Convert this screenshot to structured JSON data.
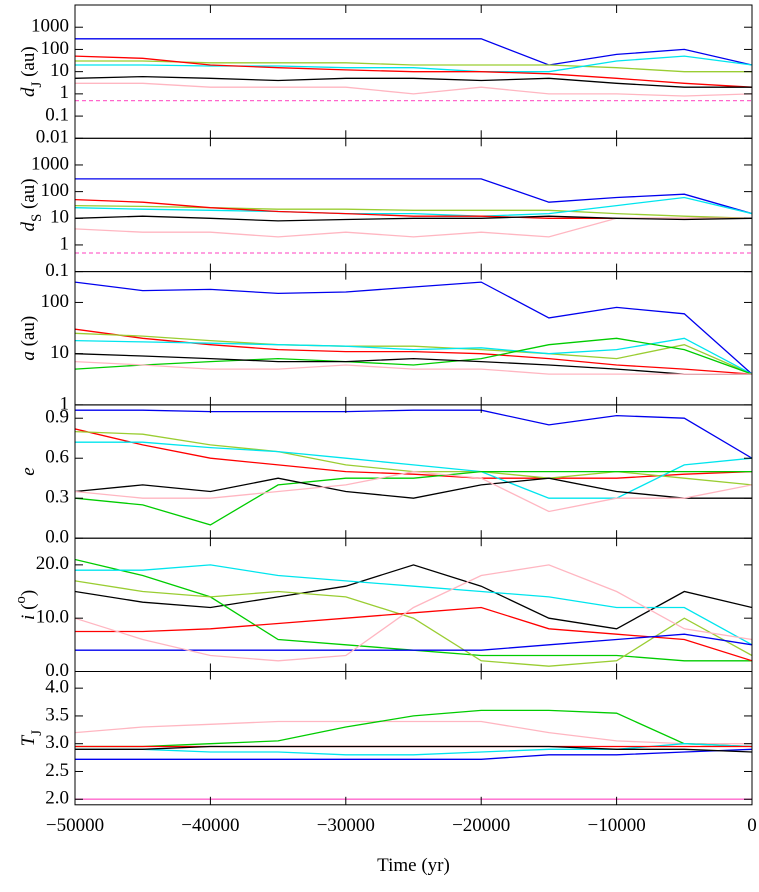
{
  "chart_data": [
    {
      "type": "line",
      "log": true,
      "ylabel": [
        {
          "text": "d",
          "style": "italic"
        },
        {
          "text": "J",
          "style": "sub"
        },
        {
          "text": " (au)",
          "style": "normal"
        }
      ],
      "xlim": [
        -50000,
        0
      ],
      "ylim": [
        0.01,
        10000
      ],
      "yticks": [
        0.01,
        0.1,
        1,
        10,
        100,
        1000
      ],
      "x": [
        -50000,
        -45000,
        -40000,
        -35000,
        -30000,
        -25000,
        -20000,
        -15000,
        -10000,
        -5000,
        0
      ],
      "series": [
        {
          "color": "#ff66cc",
          "dash": true,
          "values": [
            0.5,
            0.5,
            0.5,
            0.5,
            0.5,
            0.5,
            0.5,
            0.5,
            0.5,
            0.5,
            0.5
          ]
        },
        {
          "color": "#0000ee",
          "values": [
            300,
            300,
            300,
            300,
            300,
            300,
            300,
            20,
            60,
            100,
            20
          ]
        },
        {
          "color": "#9acd32",
          "values": [
            30,
            30,
            25,
            25,
            25,
            20,
            20,
            20,
            15,
            10,
            10
          ]
        },
        {
          "color": "#00e5ee",
          "values": [
            20,
            20,
            18,
            18,
            15,
            15,
            10,
            10,
            30,
            50,
            20
          ]
        },
        {
          "color": "#ff0000",
          "values": [
            50,
            40,
            20,
            15,
            12,
            10,
            10,
            8,
            5,
            3,
            2
          ]
        },
        {
          "color": "#ffb6c1",
          "values": [
            3,
            3,
            2,
            2,
            2,
            1,
            2,
            1,
            1,
            0.8,
            1
          ]
        },
        {
          "color": "#000000",
          "values": [
            5,
            6,
            5,
            4,
            5,
            5,
            4,
            5,
            3,
            2,
            2
          ]
        }
      ]
    },
    {
      "type": "line",
      "log": true,
      "ylabel": [
        {
          "text": "d",
          "style": "italic"
        },
        {
          "text": "S",
          "style": "sub"
        },
        {
          "text": " (au)",
          "style": "normal"
        }
      ],
      "xlim": [
        -50000,
        0
      ],
      "ylim": [
        0.1,
        10000
      ],
      "yticks": [
        0.1,
        1,
        10,
        100,
        1000
      ],
      "x": [
        -50000,
        -45000,
        -40000,
        -35000,
        -30000,
        -25000,
        -20000,
        -15000,
        -10000,
        -5000,
        0
      ],
      "series": [
        {
          "color": "#ff66cc",
          "dash": true,
          "values": [
            0.5,
            0.5,
            0.5,
            0.5,
            0.5,
            0.5,
            0.5,
            0.5,
            0.5,
            0.5,
            0.5
          ]
        },
        {
          "color": "#0000ee",
          "values": [
            300,
            300,
            300,
            300,
            300,
            300,
            300,
            40,
            60,
            80,
            15
          ]
        },
        {
          "color": "#9acd32",
          "values": [
            30,
            28,
            25,
            22,
            22,
            20,
            20,
            20,
            15,
            12,
            10
          ]
        },
        {
          "color": "#00e5ee",
          "values": [
            25,
            22,
            20,
            18,
            15,
            15,
            12,
            15,
            30,
            60,
            15
          ]
        },
        {
          "color": "#ff0000",
          "values": [
            50,
            40,
            25,
            18,
            15,
            12,
            12,
            10,
            10,
            10,
            10
          ]
        },
        {
          "color": "#ffb6c1",
          "values": [
            4,
            3,
            3,
            2,
            3,
            2,
            3,
            2,
            10,
            10,
            10
          ]
        },
        {
          "color": "#000000",
          "values": [
            10,
            12,
            10,
            8,
            9,
            10,
            10,
            12,
            10,
            9,
            10
          ]
        }
      ]
    },
    {
      "type": "line",
      "log": true,
      "ylabel": [
        {
          "text": "a",
          "style": "italic"
        },
        {
          "text": " (au)",
          "style": "normal"
        }
      ],
      "xlim": [
        -50000,
        0
      ],
      "ylim": [
        1,
        400
      ],
      "yticks": [
        1,
        10,
        100
      ],
      "x": [
        -50000,
        -45000,
        -40000,
        -35000,
        -30000,
        -25000,
        -20000,
        -15000,
        -10000,
        -5000,
        0
      ],
      "series": [
        {
          "color": "#0000ee",
          "values": [
            250,
            170,
            180,
            150,
            160,
            200,
            250,
            50,
            80,
            60,
            4
          ]
        },
        {
          "color": "#ff0000",
          "values": [
            30,
            20,
            15,
            12,
            11,
            11,
            10,
            8,
            6,
            5,
            4
          ]
        },
        {
          "color": "#9acd32",
          "values": [
            25,
            22,
            18,
            15,
            14,
            14,
            12,
            10,
            8,
            15,
            4
          ]
        },
        {
          "color": "#00e5ee",
          "values": [
            18,
            17,
            16,
            15,
            14,
            12,
            13,
            10,
            12,
            20,
            4
          ]
        },
        {
          "color": "#00cc00",
          "values": [
            5,
            6,
            7,
            8,
            7,
            6,
            8,
            15,
            20,
            12,
            4
          ]
        },
        {
          "color": "#000000",
          "values": [
            10,
            9,
            8,
            7,
            7,
            8,
            7,
            6,
            5,
            4,
            4
          ]
        },
        {
          "color": "#ffb6c1",
          "values": [
            7,
            6,
            5,
            5,
            6,
            5,
            5,
            4,
            4,
            4,
            4
          ]
        }
      ]
    },
    {
      "type": "line",
      "log": false,
      "ylabel": [
        {
          "text": "e",
          "style": "italic"
        }
      ],
      "xlim": [
        -50000,
        0
      ],
      "ylim": [
        0,
        1
      ],
      "yticks": [
        {
          "value": 0,
          "label": "0.0"
        },
        0.3,
        0.6,
        0.9
      ],
      "x": [
        -50000,
        -45000,
        -40000,
        -35000,
        -30000,
        -25000,
        -20000,
        -15000,
        -10000,
        -5000,
        0
      ],
      "series": [
        {
          "color": "#0000ee",
          "values": [
            0.96,
            0.96,
            0.95,
            0.95,
            0.95,
            0.96,
            0.96,
            0.85,
            0.92,
            0.9,
            0.6
          ]
        },
        {
          "color": "#ff0000",
          "values": [
            0.82,
            0.7,
            0.6,
            0.55,
            0.5,
            0.48,
            0.45,
            0.45,
            0.45,
            0.48,
            0.5
          ]
        },
        {
          "color": "#9acd32",
          "values": [
            0.8,
            0.78,
            0.7,
            0.65,
            0.55,
            0.5,
            0.5,
            0.45,
            0.5,
            0.45,
            0.4
          ]
        },
        {
          "color": "#00e5ee",
          "values": [
            0.72,
            0.72,
            0.68,
            0.65,
            0.6,
            0.55,
            0.5,
            0.3,
            0.3,
            0.55,
            0.6
          ]
        },
        {
          "color": "#00cc00",
          "values": [
            0.3,
            0.25,
            0.1,
            0.4,
            0.45,
            0.45,
            0.5,
            0.5,
            0.5,
            0.5,
            0.5
          ]
        },
        {
          "color": "#000000",
          "values": [
            0.35,
            0.4,
            0.35,
            0.45,
            0.35,
            0.3,
            0.4,
            0.45,
            0.35,
            0.3,
            0.3
          ]
        },
        {
          "color": "#ffb6c1",
          "values": [
            0.35,
            0.3,
            0.3,
            0.35,
            0.4,
            0.5,
            0.45,
            0.2,
            0.3,
            0.3,
            0.4
          ]
        }
      ]
    },
    {
      "type": "line",
      "log": false,
      "ylabel": [
        {
          "text": "i",
          "style": "italic"
        },
        {
          "text": " (",
          "style": "normal"
        },
        {
          "text": "o",
          "style": "sup"
        },
        {
          "text": ")",
          "style": "normal"
        }
      ],
      "xlim": [
        -50000,
        0
      ],
      "ylim": [
        0,
        25
      ],
      "yticks": [
        {
          "value": 0,
          "label": "0.0"
        },
        {
          "value": 10,
          "label": "10.0"
        },
        {
          "value": 20,
          "label": "20.0"
        }
      ],
      "x": [
        -50000,
        -45000,
        -40000,
        -35000,
        -30000,
        -25000,
        -20000,
        -15000,
        -10000,
        -5000,
        0
      ],
      "series": [
        {
          "color": "#000000",
          "values": [
            15,
            13,
            12,
            14,
            16,
            20,
            16,
            10,
            8,
            15,
            12
          ]
        },
        {
          "color": "#00cc00",
          "values": [
            21,
            18,
            14,
            6,
            5,
            4,
            3,
            3,
            3,
            2,
            2
          ]
        },
        {
          "color": "#00e5ee",
          "values": [
            19,
            19,
            20,
            18,
            17,
            16,
            15,
            14,
            12,
            12,
            5
          ]
        },
        {
          "color": "#9acd32",
          "values": [
            17,
            15,
            14,
            15,
            14,
            10,
            2,
            1,
            2,
            10,
            3
          ]
        },
        {
          "color": "#ff0000",
          "values": [
            7.5,
            7.5,
            8,
            9,
            10,
            11,
            12,
            8,
            7,
            6,
            2
          ]
        },
        {
          "color": "#0000ee",
          "values": [
            4,
            4,
            4,
            4,
            4,
            4,
            4,
            5,
            6,
            7,
            5
          ]
        },
        {
          "color": "#ffb6c1",
          "values": [
            10,
            6,
            3,
            2,
            3,
            12,
            18,
            20,
            15,
            8,
            6
          ]
        }
      ]
    },
    {
      "type": "line",
      "log": false,
      "ylabel": [
        {
          "text": "T",
          "style": "italic"
        },
        {
          "text": "J",
          "style": "sub"
        }
      ],
      "xlim": [
        -50000,
        0
      ],
      "ylim": [
        1.9,
        4.3
      ],
      "yticks": [
        {
          "value": 2,
          "label": "2.0"
        },
        2.5,
        {
          "value": 3,
          "label": "3.0"
        },
        3.5,
        {
          "value": 4,
          "label": "4.0"
        }
      ],
      "xticks": [
        {
          "value": -50000,
          "label": "−50000"
        },
        {
          "value": -40000,
          "label": "−40000"
        },
        {
          "value": -30000,
          "label": "−30000"
        },
        {
          "value": -20000,
          "label": "−20000"
        },
        {
          "value": -10000,
          "label": "−10000"
        },
        0
      ],
      "xlabel": "Time (yr)",
      "x": [
        -50000,
        -45000,
        -40000,
        -35000,
        -30000,
        -25000,
        -20000,
        -15000,
        -10000,
        -5000,
        0
      ],
      "series": [
        {
          "color": "#ff66cc",
          "values": [
            2,
            2,
            2,
            2,
            2,
            2,
            2,
            2,
            2,
            2,
            2
          ]
        },
        {
          "color": "#ffb6c1",
          "values": [
            3.2,
            3.3,
            3.35,
            3.4,
            3.4,
            3.4,
            3.4,
            3.2,
            3.05,
            3.0,
            3.0
          ]
        },
        {
          "color": "#00cc00",
          "values": [
            2.95,
            2.95,
            3.0,
            3.05,
            3.3,
            3.5,
            3.6,
            3.6,
            3.55,
            3.0,
            2.95
          ]
        },
        {
          "color": "#00e5ee",
          "values": [
            2.9,
            2.9,
            2.85,
            2.85,
            2.8,
            2.8,
            2.85,
            2.9,
            2.9,
            3.0,
            2.95
          ]
        },
        {
          "color": "#0000ee",
          "values": [
            2.72,
            2.72,
            2.72,
            2.72,
            2.72,
            2.72,
            2.72,
            2.8,
            2.8,
            2.85,
            2.9
          ]
        },
        {
          "color": "#ff0000",
          "values": [
            2.95,
            2.95,
            2.95,
            2.95,
            2.95,
            2.95,
            2.95,
            2.95,
            2.95,
            2.95,
            2.95
          ]
        },
        {
          "color": "#000000",
          "values": [
            2.9,
            2.9,
            2.95,
            2.95,
            2.95,
            2.95,
            2.95,
            2.95,
            2.9,
            2.9,
            2.85
          ]
        }
      ]
    }
  ]
}
